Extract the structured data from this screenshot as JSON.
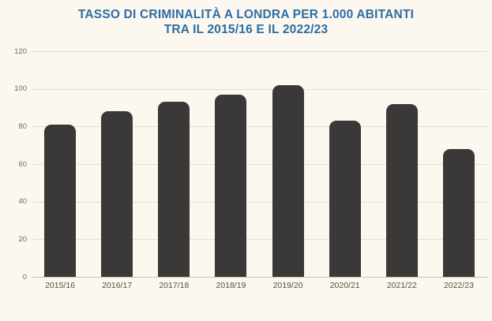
{
  "title": {
    "line1": "TASSO DI CRIMINALITÀ A LONDRA PER 1.000 ABITANTI",
    "line2": "TRA IL 2015/16 E IL 2022/23"
  },
  "colors": {
    "background": "#FCF8EF",
    "title": "#2C6DA6",
    "bar": "#3A3938",
    "gridline": "#E4DFD5",
    "baseline": "#C8C2B6",
    "axis_text": "#6F6D68",
    "x_label_text": "#514F4A"
  },
  "chart_data": {
    "type": "bar",
    "title": "TASSO DI CRIMINALITÀ A LONDRA PER 1.000 ABITANTI TRA IL 2015/16 E IL 2022/23",
    "categories": [
      "2015/16",
      "2016/17",
      "2017/18",
      "2018/19",
      "2019/20",
      "2020/21",
      "2021/22",
      "2022/23"
    ],
    "values": [
      81,
      88,
      93,
      97,
      102,
      83,
      92,
      68
    ],
    "xlabel": "",
    "ylabel": "",
    "ylim": [
      0,
      120
    ],
    "yticks": [
      0,
      20,
      40,
      60,
      80,
      100,
      120
    ],
    "grid": true,
    "legend": false
  }
}
